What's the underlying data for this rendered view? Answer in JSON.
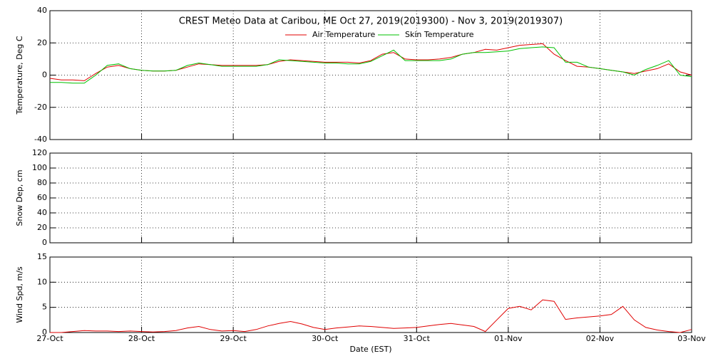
{
  "chart_data": [
    {
      "type": "line",
      "title": "CREST Meteo Data at Caribou, ME   Oct 27, 2019(2019300) - Nov  3, 2019(2019307)",
      "ylabel": "Temperature, Deg C",
      "x": [
        0,
        0.125,
        0.25,
        0.375,
        0.5,
        0.625,
        0.75,
        0.875,
        1,
        1.125,
        1.25,
        1.375,
        1.5,
        1.625,
        1.75,
        1.875,
        2,
        2.125,
        2.25,
        2.375,
        2.5,
        2.625,
        2.75,
        2.875,
        3,
        3.125,
        3.25,
        3.375,
        3.5,
        3.625,
        3.75,
        3.875,
        4,
        4.125,
        4.25,
        4.375,
        4.5,
        4.625,
        4.75,
        4.875,
        5,
        5.125,
        5.25,
        5.375,
        5.5,
        5.625,
        5.75,
        5.875,
        6,
        6.125,
        6.25,
        6.375,
        6.5,
        6.625,
        6.75,
        6.875,
        7
      ],
      "xlim": [
        0,
        7
      ],
      "xticks": [
        0,
        1,
        2,
        3,
        4,
        5,
        6,
        7
      ],
      "ylim": [
        -40,
        40
      ],
      "yticks": [
        -40,
        -20,
        0,
        20,
        40
      ],
      "grid": true,
      "series": [
        {
          "name": "Air Temperature",
          "color": "#e00000",
          "values": [
            -2,
            -3,
            -3,
            -3.5,
            1,
            5,
            6,
            4,
            3,
            2.5,
            2.5,
            3,
            5,
            7,
            6.5,
            6,
            6,
            6,
            6,
            6.5,
            8.5,
            9.5,
            9,
            8.5,
            8,
            8,
            8,
            7.5,
            9,
            13,
            14,
            10,
            9.5,
            9.5,
            10,
            11,
            13,
            14,
            16,
            15.5,
            17,
            18.5,
            19,
            19.5,
            13,
            9,
            5.5,
            5,
            4,
            3,
            2,
            1,
            2.5,
            4,
            7,
            2,
            0
          ]
        },
        {
          "name": "Skin Temperature",
          "color": "#00c000",
          "values": [
            -4.5,
            -4.5,
            -5,
            -5,
            0,
            6,
            7,
            4,
            3,
            2.5,
            2.5,
            3,
            6,
            7.5,
            6.5,
            5.5,
            5.5,
            5.5,
            5.5,
            6.5,
            9.5,
            9,
            8.5,
            8,
            7.5,
            7.5,
            7,
            7,
            8.5,
            12,
            15.5,
            9,
            9,
            9,
            9,
            10,
            13,
            14,
            14,
            14.5,
            15,
            16.5,
            17,
            17.5,
            17,
            8,
            8,
            5,
            4,
            3,
            2,
            0,
            3.5,
            6,
            9,
            0,
            -1
          ]
        }
      ]
    },
    {
      "type": "line",
      "ylabel": "Snow Dep, cm",
      "xlim": [
        0,
        7
      ],
      "xticks": [
        0,
        1,
        2,
        3,
        4,
        5,
        6,
        7
      ],
      "ylim": [
        0,
        120
      ],
      "yticks": [
        0,
        20,
        40,
        60,
        80,
        100,
        120
      ],
      "grid": true,
      "series": []
    },
    {
      "type": "line",
      "ylabel": "Wind Spd, m/s",
      "xlabel": "Date (EST)",
      "x": [
        0,
        0.125,
        0.25,
        0.375,
        0.5,
        0.625,
        0.75,
        0.875,
        1,
        1.125,
        1.25,
        1.375,
        1.5,
        1.625,
        1.75,
        1.875,
        2,
        2.125,
        2.25,
        2.375,
        2.5,
        2.625,
        2.75,
        2.875,
        3,
        3.125,
        3.25,
        3.375,
        3.5,
        3.625,
        3.75,
        3.875,
        4,
        4.125,
        4.25,
        4.375,
        4.5,
        4.625,
        4.75,
        4.875,
        5,
        5.125,
        5.25,
        5.375,
        5.5,
        5.625,
        5.75,
        5.875,
        6,
        6.125,
        6.25,
        6.375,
        6.5,
        6.625,
        6.75,
        6.875,
        7
      ],
      "xlim": [
        0,
        7
      ],
      "xticks": [
        {
          "value": 0,
          "label": "27-Oct"
        },
        {
          "value": 1,
          "label": "28-Oct"
        },
        {
          "value": 2,
          "label": "29-Oct"
        },
        {
          "value": 3,
          "label": "30-Oct"
        },
        {
          "value": 4,
          "label": "31-Oct"
        },
        {
          "value": 5,
          "label": "01-Nov"
        },
        {
          "value": 6,
          "label": "02-Nov"
        },
        {
          "value": 7,
          "label": "03-Nov"
        }
      ],
      "ylim": [
        0,
        15
      ],
      "yticks": [
        0,
        5,
        10,
        15
      ],
      "grid": true,
      "series": [
        {
          "color": "#e00000",
          "values": [
            0,
            0,
            0.2,
            0.4,
            0.3,
            0.3,
            0.2,
            0.3,
            0.2,
            0.1,
            0.2,
            0.4,
            0.9,
            1.2,
            0.6,
            0.3,
            0.4,
            0.2,
            0.6,
            1.3,
            1.8,
            2.2,
            1.7,
            1.0,
            0.6,
            0.9,
            1.1,
            1.3,
            1.2,
            1.0,
            0.8,
            0.9,
            1.0,
            1.3,
            1.6,
            1.8,
            1.5,
            1.2,
            0.2,
            2.5,
            4.8,
            5.2,
            4.5,
            6.5,
            6.2,
            2.6,
            2.9,
            3.1,
            3.3,
            3.6,
            5.2,
            2.5,
            1.0,
            0.5,
            0.2,
            0,
            0.6
          ]
        }
      ]
    }
  ]
}
